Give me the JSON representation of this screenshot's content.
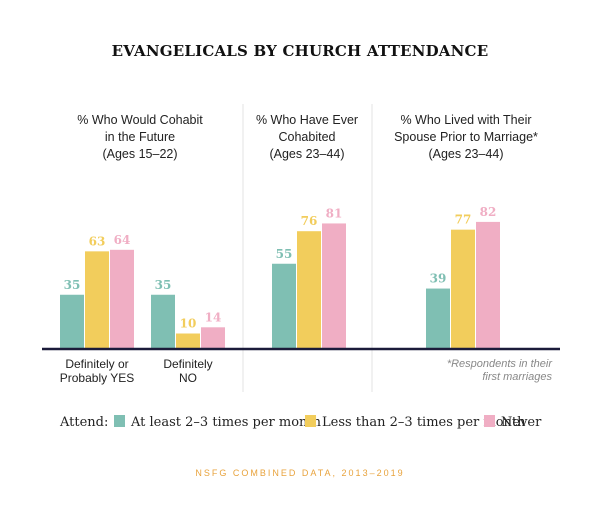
{
  "chart_data": {
    "type": "bar",
    "title": "EVANGELICALS BY CHURCH ATTENDANCE",
    "colors": {
      "at_least": "#7fbfb3",
      "less_than": "#f2cd5c",
      "never": "#f0aec4",
      "axis": "#1b1b3a",
      "divider": "#e3e3e3",
      "source": "#e8a33d"
    },
    "panels": [
      {
        "title_lines": [
          "% Who Would Cohabit",
          "in the Future",
          "(Ages 15–22)"
        ],
        "groups": [
          {
            "label_lines": [
              "Definitely or",
              "Probably YES"
            ],
            "values": [
              35,
              63,
              64
            ]
          },
          {
            "label_lines": [
              "Definitely",
              "NO"
            ],
            "values": [
              35,
              10,
              14
            ]
          }
        ]
      },
      {
        "title_lines": [
          "% Who Have Ever",
          "Cohabited",
          "(Ages 23–44)"
        ],
        "groups": [
          {
            "label_lines": [],
            "values": [
              55,
              76,
              81
            ]
          }
        ]
      },
      {
        "title_lines": [
          "% Who Lived with Their",
          "Spouse Prior to Marriage*",
          "(Ages 23–44)"
        ],
        "groups": [
          {
            "label_lines": [],
            "values": [
              39,
              77,
              82
            ]
          }
        ]
      }
    ],
    "series": [
      {
        "name": "At least 2–3 times per month"
      },
      {
        "name": "Less than 2–3 times per month"
      },
      {
        "name": "Never"
      }
    ],
    "legend_label": "Attend:",
    "footnote_lines": [
      "*Respondents in their",
      "first marriages"
    ],
    "source": "NSFG COMBINED DATA, 2013–2019",
    "ylim": [
      0,
      100
    ]
  }
}
